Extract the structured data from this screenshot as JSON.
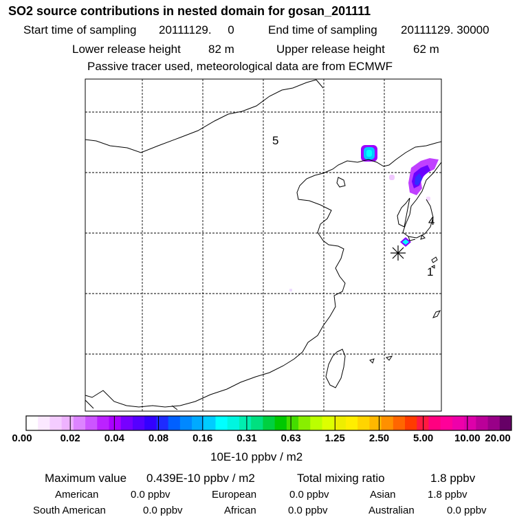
{
  "header": {
    "title": "SO2 source contributions in nested domain for gosan_201111",
    "start_label": "Start time of sampling",
    "start_value": "20111129.     0",
    "end_label": "End time of sampling",
    "end_value": "20111129. 30000",
    "lower_label": "Lower release height",
    "lower_value": "82 m",
    "upper_label": "Upper release height",
    "upper_value": "62 m",
    "note": "Passive tracer used, meteorological data are from ECMWF"
  },
  "map": {
    "region_labels": [
      {
        "id": "region-5",
        "text": "5"
      },
      {
        "id": "region-4",
        "text": "4"
      },
      {
        "id": "region-1",
        "text": "1"
      }
    ],
    "colors": {
      "coast": "#000000",
      "grid": "#000000"
    }
  },
  "colorbar": {
    "ticks": [
      "0.00",
      "0.02",
      "0.04",
      "0.08",
      "0.16",
      "0.31",
      "0.63",
      "1.25",
      "2.50",
      "5.00",
      "10.00",
      "20.00"
    ],
    "unit_label": "10E-10 ppbv / m2",
    "colors": [
      "#ffffff",
      "#fbe8ff",
      "#f4ccff",
      "#eeb2ff",
      "#dd84ff",
      "#cc55ff",
      "#bb22ff",
      "#aa00ff",
      "#7700ff",
      "#5500ff",
      "#3300ff",
      "#1e2bff",
      "#0060ff",
      "#0088ff",
      "#00aaff",
      "#00ccff",
      "#00ffff",
      "#00f5e0",
      "#00eeb0",
      "#00e080",
      "#00d040",
      "#00c800",
      "#44dd00",
      "#88ee00",
      "#bbff00",
      "#ddff00",
      "#eeee00",
      "#ffee00",
      "#ffd400",
      "#ffb800",
      "#ff9000",
      "#ff6600",
      "#ff3b00",
      "#ff1a40",
      "#ff0080",
      "#ff0099",
      "#ee00aa",
      "#dd00aa",
      "#bb0099",
      "#990088",
      "#660066"
    ]
  },
  "footer": {
    "max_label": "Maximum value",
    "max_value": "0.439E-10 ppbv / m2",
    "total_label": "Total mixing ratio",
    "total_value": "1.8 ppbv",
    "american_label": "American",
    "american_value": "0.0 ppbv",
    "european_label": "European",
    "european_value": "0.0 ppbv",
    "asian_label": "Asian",
    "asian_value": "1.8 ppbv",
    "south_american_label": "South American",
    "south_american_value": "0.0 ppbv",
    "african_label": "African",
    "african_value": "0.0 ppbv",
    "australian_label": "Australian",
    "australian_value": "0.0 ppbv"
  }
}
